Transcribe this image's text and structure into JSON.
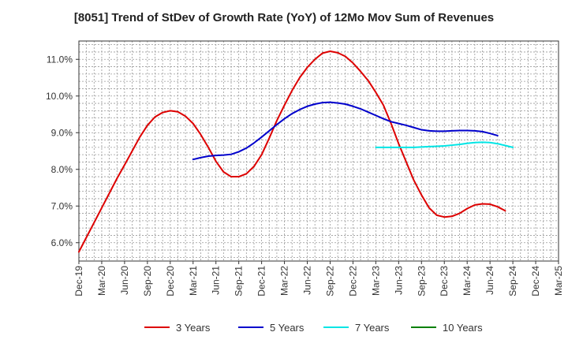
{
  "chart_data": {
    "type": "line",
    "title": "[8051]  Trend of StDev of Growth Rate (YoY) of 12Mo Mov Sum of Revenues",
    "xlabel": "",
    "ylabel": "",
    "x_ticks": [
      "Dec-19",
      "Mar-20",
      "Jun-20",
      "Sep-20",
      "Dec-20",
      "Mar-21",
      "Jun-21",
      "Sep-21",
      "Dec-21",
      "Mar-22",
      "Jun-22",
      "Sep-22",
      "Dec-22",
      "Mar-23",
      "Jun-23",
      "Sep-23",
      "Dec-23",
      "Mar-24",
      "Jun-24",
      "Sep-24",
      "Dec-24",
      "Mar-25"
    ],
    "y_ticks": [
      "6.0%",
      "7.0%",
      "8.0%",
      "9.0%",
      "10.0%",
      "11.0%"
    ],
    "ylim": [
      5.5,
      11.5
    ],
    "y_tick_values": [
      6.0,
      7.0,
      8.0,
      9.0,
      10.0,
      11.0
    ],
    "grid": true,
    "legend_position": "bottom",
    "series": [
      {
        "name": "3 Years",
        "color": "#dd0000",
        "start_index": 0,
        "values": [
          5.75,
          6.15,
          6.55,
          6.95,
          7.35,
          7.75,
          8.12,
          8.5,
          8.88,
          9.2,
          9.43,
          9.55,
          9.6,
          9.57,
          9.45,
          9.25,
          8.95,
          8.6,
          8.22,
          7.93,
          7.8,
          7.8,
          7.88,
          8.08,
          8.4,
          8.85,
          9.33,
          9.75,
          10.15,
          10.5,
          10.78,
          11.0,
          11.17,
          11.22,
          11.18,
          11.08,
          10.9,
          10.67,
          10.42,
          10.1,
          9.75,
          9.25,
          8.7,
          8.2,
          7.7,
          7.3,
          6.95,
          6.75,
          6.7,
          6.72,
          6.8,
          6.93,
          7.03,
          7.06,
          7.05,
          6.98,
          6.87
        ]
      },
      {
        "name": "5 Years",
        "color": "#0000cc",
        "start_index": 15,
        "values": [
          8.27,
          8.32,
          8.36,
          8.38,
          8.39,
          8.41,
          8.48,
          8.58,
          8.72,
          8.88,
          9.05,
          9.22,
          9.38,
          9.52,
          9.63,
          9.72,
          9.78,
          9.82,
          9.83,
          9.81,
          9.78,
          9.72,
          9.65,
          9.56,
          9.47,
          9.38,
          9.3,
          9.25,
          9.2,
          9.14,
          9.08,
          9.05,
          9.04,
          9.04,
          9.05,
          9.06,
          9.06,
          9.05,
          9.03,
          8.98,
          8.92
        ]
      },
      {
        "name": "7 Years",
        "color": "#00e5e5",
        "start_index": 39,
        "values": [
          8.6,
          8.6,
          8.6,
          8.6,
          8.6,
          8.6,
          8.61,
          8.62,
          8.63,
          8.64,
          8.66,
          8.68,
          8.71,
          8.73,
          8.74,
          8.73,
          8.7,
          8.65,
          8.6
        ]
      },
      {
        "name": "10 Years",
        "color": "#008000",
        "start_index": 0,
        "values": []
      }
    ]
  }
}
